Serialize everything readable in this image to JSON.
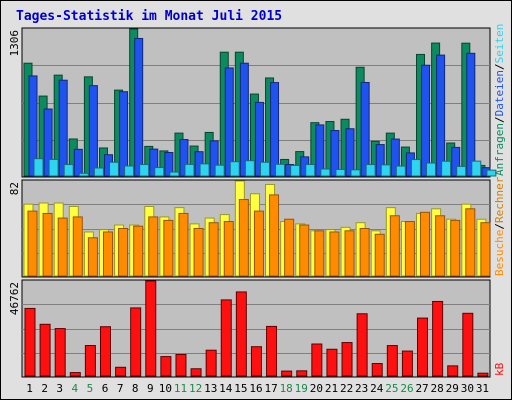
{
  "window": {
    "title": "Tages-Statistik im Monat Juli 2015",
    "title_color": "#0000cc"
  },
  "colors": {
    "panel_bg": "#c0c0c0",
    "frame_bg": "#e0e0e0",
    "anfragen": "#0e8a5f",
    "dateien": "#1f52ee",
    "seiten": "#2fd4f0",
    "besuche": "#ff8c00",
    "rechner": "#ffff40",
    "kb": "#ff1010",
    "weekend_day": "#1a8a4a",
    "weekday_day": "#000000"
  },
  "right_labels": {
    "panel1": [
      {
        "text": "Anfragen",
        "color": "#0e8a5f"
      },
      {
        "text": "/",
        "color": "#000000"
      },
      {
        "text": "Dateien",
        "color": "#1f52ee"
      },
      {
        "text": "/",
        "color": "#000000"
      },
      {
        "text": "Seiten",
        "color": "#2fd4f0"
      }
    ],
    "panel2": [
      {
        "text": "Besuche",
        "color": "#ff8c00"
      },
      {
        "text": "/",
        "color": "#000000"
      },
      {
        "text": "Rechner",
        "color": "#d08000"
      }
    ],
    "panel3": [
      {
        "text": "kB",
        "color": "#ff1010"
      }
    ]
  },
  "chart_data": {
    "type": "bar",
    "title": "Tages-Statistik im Monat Juli 2015",
    "categories": [
      "1",
      "2",
      "3",
      "4",
      "5",
      "6",
      "7",
      "8",
      "9",
      "10",
      "11",
      "12",
      "13",
      "14",
      "15",
      "16",
      "17",
      "18",
      "19",
      "20",
      "21",
      "22",
      "23",
      "24",
      "25",
      "26",
      "27",
      "28",
      "29",
      "30",
      "31"
    ],
    "weekend_days": [
      "4",
      "5",
      "11",
      "12",
      "18",
      "19",
      "25",
      "26"
    ],
    "panels": [
      {
        "ymax_label": "1306",
        "ylim": [
          0,
          1306
        ],
        "series": [
          {
            "name": "Anfragen",
            "values": [
              1002,
              710,
              896,
              329,
              881,
              249,
              763,
              1306,
              263,
              223,
              381,
              266,
              387,
              1100,
              1100,
              728,
              871,
              147,
              217,
              474,
              484,
              504,
              966,
              308,
              381,
              257,
              1080,
              1181,
              293,
              1180,
              94
            ]
          },
          {
            "name": "Dateien",
            "values": [
              889,
              595,
              851,
              237,
              803,
              189,
              749,
              1222,
              239,
              209,
              324,
              216,
              312,
              960,
              1002,
              654,
              830,
              102,
              170,
              454,
              404,
              420,
              831,
              279,
              328,
              205,
              984,
              1074,
              254,
              1090,
              74
            ]
          },
          {
            "name": "Seiten",
            "values": [
              154,
              147,
              102,
              24,
              71,
              122,
              89,
              102,
              75,
              35,
              103,
              108,
              96,
              127,
              136,
              122,
              104,
              94,
              102,
              62,
              58,
              55,
              102,
              99,
              88,
              146,
              115,
              131,
              85,
              132,
              52
            ]
          }
        ]
      },
      {
        "ymax_label": "82",
        "ylim": [
          0,
          82
        ],
        "series": [
          {
            "name": "Rechner",
            "values": [
              62,
              63,
              63,
              60,
              38,
              40,
              44,
              44,
              60,
              51,
              59,
              45,
              50,
              53,
              82,
              71,
              79,
              47,
              45,
              39,
              40,
              42,
              46,
              39,
              59,
              47,
              54,
              58,
              49,
              62,
              49
            ]
          },
          {
            "name": "Besuche",
            "values": [
              56,
              54,
              50,
              51,
              33,
              38,
              41,
              43,
              51,
              48,
              54,
              41,
              46,
              47,
              66,
              56,
              70,
              49,
              44,
              39,
              38,
              39,
              41,
              36,
              52,
              47,
              55,
              52,
              48,
              58,
              46
            ]
          }
        ]
      },
      {
        "ymax_label": "46762",
        "ylim": [
          0,
          46762
        ],
        "series": [
          {
            "name": "kB",
            "values": [
              33262,
              25450,
              23350,
              1690,
              15000,
              24260,
              4290,
              33520,
              46762,
              9560,
              10590,
              3570,
              12690,
              37470,
              41380,
              14430,
              24410,
              2420,
              2550,
              15750,
              13160,
              16460,
              30640,
              6140,
              14980,
              12270,
              28510,
              36690,
              5000,
              30860,
              1390
            ]
          }
        ]
      }
    ]
  }
}
